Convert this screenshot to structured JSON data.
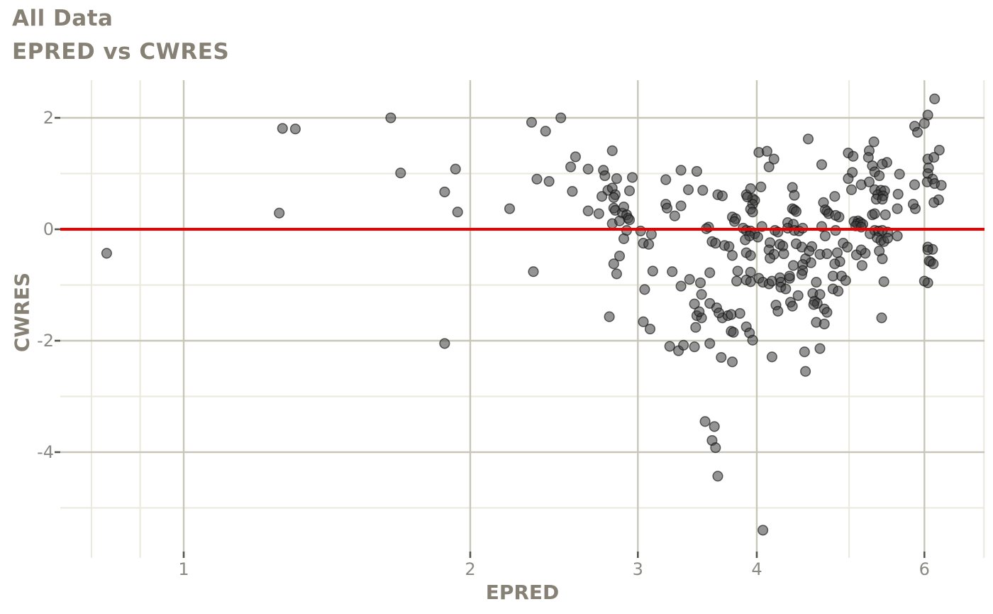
{
  "title": "All Data",
  "subtitle": "EPRED vs CWRES",
  "axes": {
    "x": {
      "label": "EPRED",
      "scale": "log10",
      "tick_labels": [
        "1",
        "2",
        "3",
        "4",
        "6"
      ],
      "tick_values": [
        1,
        2,
        3,
        4,
        6
      ],
      "minor_values": [
        0.8,
        0.9,
        5,
        6.93
      ],
      "range": [
        0.74,
        6.95
      ]
    },
    "y": {
      "label": "CWRES",
      "scale": "linear",
      "tick_labels": [
        "2",
        "0",
        "-2",
        "-4"
      ],
      "tick_values": [
        2,
        0,
        -2,
        -4
      ],
      "minor_values": [
        1,
        -1,
        -3,
        -5
      ],
      "range": [
        -5.78,
        2.66
      ]
    }
  },
  "reference_line": {
    "y": 0,
    "color": "#ed0000"
  },
  "style": {
    "background": "#ffffff",
    "point_fill": "#3d3d3d",
    "point_stroke": "#141414",
    "grid_major": "#c8c6b9",
    "grid_minor": "#eceadf",
    "tick_mark_color": "#55554f",
    "tick_label_color": "#8a8a84",
    "title_color": "#868174"
  },
  "chart_data": {
    "type": "scatter",
    "title": "All Data",
    "subtitle": "EPRED vs CWRES",
    "xlabel": "EPRED",
    "ylabel": "CWRES",
    "x_scale": "log10",
    "xlim": [
      0.74,
      6.95
    ],
    "ylim": [
      -5.78,
      2.66
    ],
    "grid": true,
    "legend": false,
    "hline": 0,
    "points": [
      [
        0.83,
        -0.43
      ],
      [
        1.26,
        0.29
      ],
      [
        1.27,
        1.81
      ],
      [
        1.31,
        1.8
      ],
      [
        1.65,
        2.0
      ],
      [
        1.69,
        1.01
      ],
      [
        1.88,
        -2.05
      ],
      [
        1.88,
        0.67
      ],
      [
        1.93,
        1.08
      ],
      [
        1.94,
        0.31
      ],
      [
        2.2,
        0.37
      ],
      [
        2.32,
        1.92
      ],
      [
        2.49,
        2.0
      ],
      [
        2.4,
        1.76
      ],
      [
        2.82,
        1.41
      ],
      [
        2.58,
        1.3
      ],
      [
        2.55,
        1.12
      ],
      [
        2.66,
        1.08
      ],
      [
        2.76,
        1.06
      ],
      [
        2.77,
        0.96
      ],
      [
        2.35,
        0.9
      ],
      [
        2.42,
        0.86
      ],
      [
        2.85,
        0.91
      ],
      [
        2.96,
        0.93
      ],
      [
        3.21,
        0.89
      ],
      [
        3.33,
        1.06
      ],
      [
        3.46,
        1.04
      ],
      [
        2.56,
        0.68
      ],
      [
        2.79,
        0.7
      ],
      [
        2.75,
        0.59
      ],
      [
        2.82,
        0.74
      ],
      [
        2.84,
        0.62
      ],
      [
        2.83,
        0.57
      ],
      [
        2.94,
        0.69
      ],
      [
        3.39,
        0.71
      ],
      [
        3.21,
        0.45
      ],
      [
        3.22,
        0.38
      ],
      [
        3.33,
        0.42
      ],
      [
        2.66,
        0.33
      ],
      [
        2.73,
        0.28
      ],
      [
        2.83,
        0.38
      ],
      [
        2.84,
        0.34
      ],
      [
        2.89,
        0.29
      ],
      [
        2.9,
        0.4
      ],
      [
        2.92,
        0.26
      ],
      [
        2.93,
        0.2
      ],
      [
        2.94,
        0.17
      ],
      [
        2.82,
        0.1
      ],
      [
        2.87,
        0.15
      ],
      [
        3.28,
        0.24
      ],
      [
        2.92,
        -0.02
      ],
      [
        3.02,
        -0.03
      ],
      [
        3.1,
        -0.09
      ],
      [
        2.9,
        -0.17
      ],
      [
        3.04,
        -0.25
      ],
      [
        3.08,
        -0.27
      ],
      [
        2.87,
        -0.48
      ],
      [
        2.83,
        -0.62
      ],
      [
        2.85,
        -0.8
      ],
      [
        2.33,
        -0.76
      ],
      [
        3.11,
        -0.75
      ],
      [
        3.26,
        -0.76
      ],
      [
        3.4,
        -0.9
      ],
      [
        3.49,
        -0.96
      ],
      [
        3.33,
        -1.02
      ],
      [
        3.5,
        -1.17
      ],
      [
        3.57,
        -1.33
      ],
      [
        3.63,
        -1.41
      ],
      [
        3.05,
        -1.08
      ],
      [
        4.02,
        1.38
      ],
      [
        3.51,
        0.7
      ],
      [
        3.64,
        0.62
      ],
      [
        3.68,
        0.6
      ],
      [
        3.9,
        0.62
      ],
      [
        3.96,
        0.55
      ],
      [
        3.94,
        0.73
      ],
      [
        4.04,
        0.76
      ],
      [
        3.98,
        0.52
      ],
      [
        3.96,
        0.45
      ],
      [
        3.94,
        0.36
      ],
      [
        3.96,
        0.31
      ],
      [
        3.91,
        0.58
      ],
      [
        4.36,
        0.75
      ],
      [
        4.38,
        0.61
      ],
      [
        4.36,
        0.37
      ],
      [
        4.38,
        0.35
      ],
      [
        4.4,
        0.32
      ],
      [
        4.7,
        0.48
      ],
      [
        4.74,
        0.32
      ],
      [
        4.72,
        0.35
      ],
      [
        4.76,
        0.28
      ],
      [
        4.83,
        0.59
      ],
      [
        3.77,
        0.22
      ],
      [
        3.8,
        0.19
      ],
      [
        3.79,
        0.14
      ],
      [
        3.56,
        0.04
      ],
      [
        3.54,
        0.01
      ],
      [
        3.87,
        0.02
      ],
      [
        3.9,
        -0.02
      ],
      [
        3.94,
        -0.03
      ],
      [
        3.98,
        -0.08
      ],
      [
        4.01,
        -0.14
      ],
      [
        3.93,
        -0.12
      ],
      [
        3.89,
        -0.19
      ],
      [
        4.05,
        0.05
      ],
      [
        4.18,
        -0.02
      ],
      [
        4.21,
        -0.05
      ],
      [
        4.31,
        0.12
      ],
      [
        4.37,
        0.09
      ],
      [
        4.31,
        0.02
      ],
      [
        4.38,
        -0.02
      ],
      [
        4.43,
        -0.03
      ],
      [
        4.47,
        0.02
      ],
      [
        4.13,
        -0.24
      ],
      [
        4.23,
        -0.27
      ],
      [
        4.26,
        -0.3
      ],
      [
        4.12,
        -0.37
      ],
      [
        4.17,
        -0.45
      ],
      [
        4.27,
        -0.44
      ],
      [
        4.13,
        -0.52
      ],
      [
        3.7,
        -0.29
      ],
      [
        3.74,
        -0.31
      ],
      [
        3.59,
        -0.22
      ],
      [
        3.62,
        -0.25
      ],
      [
        3.77,
        -0.47
      ],
      [
        3.9,
        -0.42
      ],
      [
        3.94,
        -0.47
      ],
      [
        3.82,
        -0.75
      ],
      [
        3.94,
        -0.77
      ],
      [
        3.81,
        -0.93
      ],
      [
        3.9,
        -0.91
      ],
      [
        3.94,
        -0.94
      ],
      [
        4.02,
        -0.88
      ],
      [
        4.06,
        -0.95
      ],
      [
        4.12,
        -0.98
      ],
      [
        4.15,
        -0.93
      ],
      [
        4.23,
        -0.87
      ],
      [
        4.24,
        -0.95
      ],
      [
        4.24,
        -1.04
      ],
      [
        4.29,
        -1.07
      ],
      [
        4.33,
        -0.88
      ],
      [
        4.56,
        -0.6
      ],
      [
        4.5,
        -0.53
      ],
      [
        4.46,
        -0.32
      ],
      [
        4.4,
        -0.26
      ],
      [
        4.72,
        -0.12
      ],
      [
        4.68,
        0.05
      ],
      [
        4.84,
        -0.02
      ],
      [
        4.81,
        -0.84
      ],
      [
        3.57,
        -0.78
      ],
      [
        4.57,
        -0.31
      ],
      [
        4.54,
        -0.39
      ],
      [
        4.66,
        -0.45
      ],
      [
        4.74,
        -0.44
      ],
      [
        4.47,
        -0.63
      ],
      [
        4.37,
        -0.65
      ],
      [
        4.33,
        -0.84
      ],
      [
        4.47,
        -0.74
      ],
      [
        4.46,
        -0.81
      ],
      [
        4.62,
        -0.95
      ],
      [
        4.58,
        -1.15
      ],
      [
        4.66,
        -1.17
      ],
      [
        4.6,
        -1.29
      ],
      [
        4.63,
        -1.33
      ],
      [
        4.59,
        -1.35
      ],
      [
        4.42,
        -1.19
      ],
      [
        4.34,
        -1.31
      ],
      [
        4.36,
        -1.38
      ],
      [
        4.19,
        -1.36
      ],
      [
        4.71,
        -1.43
      ],
      [
        4.74,
        -1.49
      ],
      [
        5.29,
        0.26
      ],
      [
        5.32,
        0.28
      ],
      [
        5.46,
        0.26
      ],
      [
        5.49,
        -0.05
      ],
      [
        4.93,
        -0.25
      ],
      [
        4.88,
        0.22
      ],
      [
        6.15,
        2.34
      ],
      [
        6.05,
        2.05
      ],
      [
        6.0,
        1.9
      ],
      [
        5.86,
        1.85
      ],
      [
        5.9,
        1.74
      ],
      [
        4.53,
        1.62
      ],
      [
        5.31,
        1.57
      ],
      [
        6.22,
        1.42
      ],
      [
        4.1,
        1.4
      ],
      [
        4.17,
        1.26
      ],
      [
        4.12,
        1.12
      ],
      [
        4.68,
        1.16
      ],
      [
        5.25,
        1.41
      ],
      [
        5.24,
        1.29
      ],
      [
        5.29,
        1.14
      ],
      [
        5.48,
        1.2
      ],
      [
        5.42,
        1.17
      ],
      [
        5.32,
        1.03
      ],
      [
        5.38,
        0.96
      ],
      [
        5.65,
        0.99
      ],
      [
        4.99,
        1.37
      ],
      [
        5.05,
        1.31
      ],
      [
        5.04,
        1.02
      ],
      [
        4.99,
        0.91
      ],
      [
        5.15,
        0.8
      ],
      [
        5.25,
        0.85
      ],
      [
        5.03,
        0.71
      ],
      [
        5.86,
        0.8
      ],
      [
        6.05,
        1.26
      ],
      [
        6.14,
        1.29
      ],
      [
        6.06,
        1.1
      ],
      [
        6.05,
        1.0
      ],
      [
        6.12,
        0.9
      ],
      [
        6.04,
        0.85
      ],
      [
        6.15,
        0.82
      ],
      [
        6.25,
        0.79
      ],
      [
        5.63,
        0.63
      ],
      [
        6.21,
        0.53
      ],
      [
        6.14,
        0.48
      ],
      [
        4.84,
        0.25
      ],
      [
        5.11,
        0.15
      ],
      [
        5.06,
        0.14
      ],
      [
        5.1,
        0.1
      ],
      [
        5.14,
        0.12
      ],
      [
        5.17,
        0.09
      ],
      [
        5.08,
        0.06
      ],
      [
        5.15,
        0.04
      ],
      [
        5.32,
        -0.02
      ],
      [
        5.37,
        -0.03
      ],
      [
        5.42,
        -0.02
      ],
      [
        5.35,
        -0.15
      ],
      [
        5.4,
        -0.2
      ],
      [
        5.44,
        -0.22
      ],
      [
        5.49,
        -0.16
      ],
      [
        5.62,
        -0.12
      ],
      [
        5.26,
        -0.08
      ],
      [
        4.86,
        -0.42
      ],
      [
        4.89,
        -0.58
      ],
      [
        4.83,
        -0.62
      ],
      [
        4.98,
        -0.32
      ],
      [
        5.09,
        -0.46
      ],
      [
        5.2,
        -0.43
      ],
      [
        5.15,
        -0.37
      ],
      [
        5.38,
        -0.39
      ],
      [
        5.42,
        -0.53
      ],
      [
        5.16,
        -0.65
      ],
      [
        4.91,
        -0.84
      ],
      [
        4.96,
        -0.92
      ],
      [
        4.81,
        -1.07
      ],
      [
        4.87,
        -1.11
      ],
      [
        5.44,
        -0.94
      ],
      [
        6.05,
        -0.32
      ],
      [
        6.12,
        -0.36
      ],
      [
        6.05,
        -0.37
      ],
      [
        6.09,
        -0.58
      ],
      [
        6.07,
        -0.57
      ],
      [
        6.13,
        -0.62
      ],
      [
        6.05,
        -0.96
      ],
      [
        6.0,
        -0.93
      ],
      [
        5.87,
        0.37
      ],
      [
        5.62,
        0.37
      ],
      [
        5.84,
        0.45
      ],
      [
        5.32,
        0.71
      ],
      [
        5.4,
        0.7
      ],
      [
        5.45,
        0.69
      ],
      [
        5.36,
        0.62
      ],
      [
        5.43,
        0.6
      ],
      [
        5.34,
        0.54
      ],
      [
        5.42,
        0.54
      ],
      [
        2.8,
        -1.57
      ],
      [
        3.04,
        -1.66
      ],
      [
        3.09,
        -1.79
      ],
      [
        3.46,
        -1.55
      ],
      [
        3.5,
        -1.59
      ],
      [
        3.68,
        -1.59
      ],
      [
        3.73,
        -1.55
      ],
      [
        3.76,
        -1.53
      ],
      [
        3.84,
        -1.51
      ],
      [
        3.76,
        -1.83
      ],
      [
        3.78,
        -1.85
      ],
      [
        3.45,
        -1.76
      ],
      [
        3.9,
        -1.75
      ],
      [
        3.93,
        -1.86
      ],
      [
        3.96,
        -1.99
      ],
      [
        3.31,
        -2.18
      ],
      [
        3.35,
        -2.08
      ],
      [
        3.44,
        -2.11
      ],
      [
        3.57,
        -2.05
      ],
      [
        3.67,
        -2.3
      ],
      [
        3.77,
        -2.38
      ],
      [
        3.53,
        -3.45
      ],
      [
        3.61,
        -3.54
      ],
      [
        3.59,
        -3.79
      ],
      [
        3.62,
        -3.92
      ],
      [
        3.64,
        -4.43
      ],
      [
        5.41,
        -1.59
      ],
      [
        4.62,
        -1.67
      ],
      [
        4.71,
        -1.7
      ],
      [
        4.15,
        -2.29
      ],
      [
        4.49,
        -2.2
      ],
      [
        4.66,
        -2.14
      ],
      [
        4.5,
        -2.55
      ],
      [
        4.06,
        -5.4
      ],
      [
        3.44,
        -1.34
      ],
      [
        3.48,
        -1.48
      ],
      [
        3.65,
        -1.5
      ],
      [
        3.24,
        -2.1
      ],
      [
        4.21,
        -1.47
      ]
    ]
  }
}
